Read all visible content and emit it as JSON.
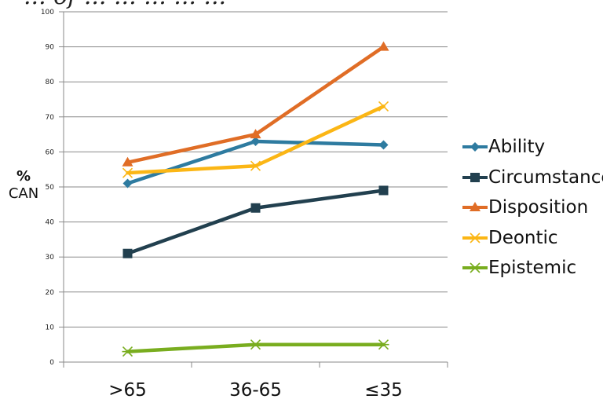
{
  "chart_data": {
    "type": "line",
    "title": "... of ... ... ... ... ...",
    "ylabel_line1": "%",
    "ylabel_line2": "CAN",
    "categories": [
      ">65",
      "36-65",
      "≤35"
    ],
    "ylim": [
      0,
      100
    ],
    "y_ticks": [
      "0",
      "10",
      "20",
      "30",
      "40",
      "50",
      "60",
      "70",
      "80",
      "90",
      "100"
    ],
    "grid": true,
    "legend_position": "right",
    "series": [
      {
        "name": "Ability",
        "values": [
          51,
          63,
          62
        ],
        "color": "#2e7ba0",
        "marker": "diamond"
      },
      {
        "name": "Circumstance",
        "values": [
          31,
          44,
          49
        ],
        "color": "#22404f",
        "marker": "square"
      },
      {
        "name": "Disposition",
        "values": [
          57,
          65,
          90
        ],
        "color": "#e06d26",
        "marker": "triangle"
      },
      {
        "name": "Deontic",
        "values": [
          54,
          56,
          73
        ],
        "color": "#fbb615",
        "marker": "x"
      },
      {
        "name": "Epistemic",
        "values": [
          3,
          5,
          5
        ],
        "color": "#79ad1f",
        "marker": "star"
      }
    ]
  }
}
